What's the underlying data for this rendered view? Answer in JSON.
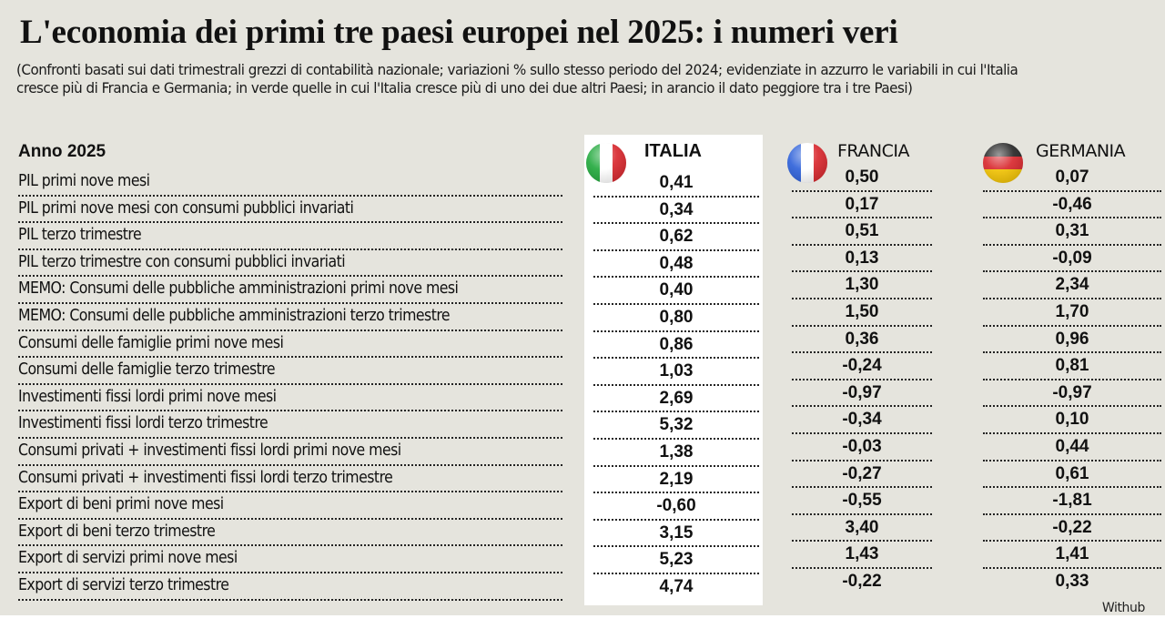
{
  "title": "L'economia dei primi tre paesi europei nel 2025: i numeri veri",
  "subtitle": "(Confronti basati sui dati trimestrali grezzi di contabilità nazionale; variazioni % sullo stesso periodo del 2024; evidenziate in azzurro le variabili in cui l'Italia cresce più di Francia e Germania; in verde quelle in cui l'Italia cresce più di uno dei due altri Paesi; in arancio il dato peggiore tra i tre Paesi)",
  "year_label": "Anno 2025",
  "columns": [
    {
      "name": "ITALIA",
      "flag": "italy-flag-icon",
      "colors": [
        "#1fa83a",
        "#ffffff",
        "#d8242a"
      ]
    },
    {
      "name": "FRANCIA",
      "flag": "france-flag-icon",
      "colors": [
        "#2b5fd9",
        "#ffffff",
        "#d8242a"
      ]
    },
    {
      "name": "GERMANIA",
      "flag": "germany-flag-icon",
      "colors": [
        "#222222",
        "#d8242a",
        "#f2c200"
      ]
    }
  ],
  "rows": [
    {
      "label": "PIL primi nove mesi",
      "italia": "0,41",
      "francia": "0,50",
      "germania": "0,07"
    },
    {
      "label": "PIL primi nove mesi con consumi pubblici invariati",
      "italia": "0,34",
      "francia": "0,17",
      "germania": "-0,46"
    },
    {
      "label": "PIL terzo trimestre",
      "italia": "0,62",
      "francia": "0,51",
      "germania": "0,31"
    },
    {
      "label": "PIL terzo trimestre con consumi pubblici invariati",
      "italia": "0,48",
      "francia": "0,13",
      "germania": "-0,09"
    },
    {
      "label": "MEMO: Consumi delle pubbliche amministrazioni primi nove mesi",
      "italia": "0,40",
      "francia": "1,30",
      "germania": "2,34"
    },
    {
      "label": "MEMO: Consumi delle pubbliche amministrazioni terzo trimestre",
      "italia": "0,80",
      "francia": "1,50",
      "germania": "1,70"
    },
    {
      "label": "Consumi delle famiglie primi nove mesi",
      "italia": "0,86",
      "francia": "0,36",
      "germania": "0,96"
    },
    {
      "label": "Consumi delle famiglie terzo trimestre",
      "italia": "1,03",
      "francia": "-0,24",
      "germania": "0,81"
    },
    {
      "label": "Investimenti fissi lordi primi nove mesi",
      "italia": "2,69",
      "francia": "-0,97",
      "germania": "-0,97"
    },
    {
      "label": "Investimenti fissi lordi terzo trimestre",
      "italia": "5,32",
      "francia": "-0,34",
      "germania": "0,10"
    },
    {
      "label": "Consumi privati + investimenti fissi lordi primi nove mesi",
      "italia": "1,38",
      "francia": "-0,03",
      "germania": "0,44"
    },
    {
      "label": "Consumi privati + investimenti fissi lordi terzo trimestre",
      "italia": "2,19",
      "francia": "-0,27",
      "germania": "0,61"
    },
    {
      "label": "Export di beni primi nove mesi",
      "italia": "-0,60",
      "francia": "-0,55",
      "germania": "-1,81"
    },
    {
      "label": "Export di beni terzo trimestre",
      "italia": "3,15",
      "francia": "3,40",
      "germania": "-0,22"
    },
    {
      "label": "Export di servizi primi nove mesi",
      "italia": "5,23",
      "francia": "1,43",
      "germania": "1,41"
    },
    {
      "label": "Export di servizi terzo trimestre",
      "italia": "4,74",
      "francia": "-0,22",
      "germania": "0,33"
    }
  ],
  "source": "Withub"
}
